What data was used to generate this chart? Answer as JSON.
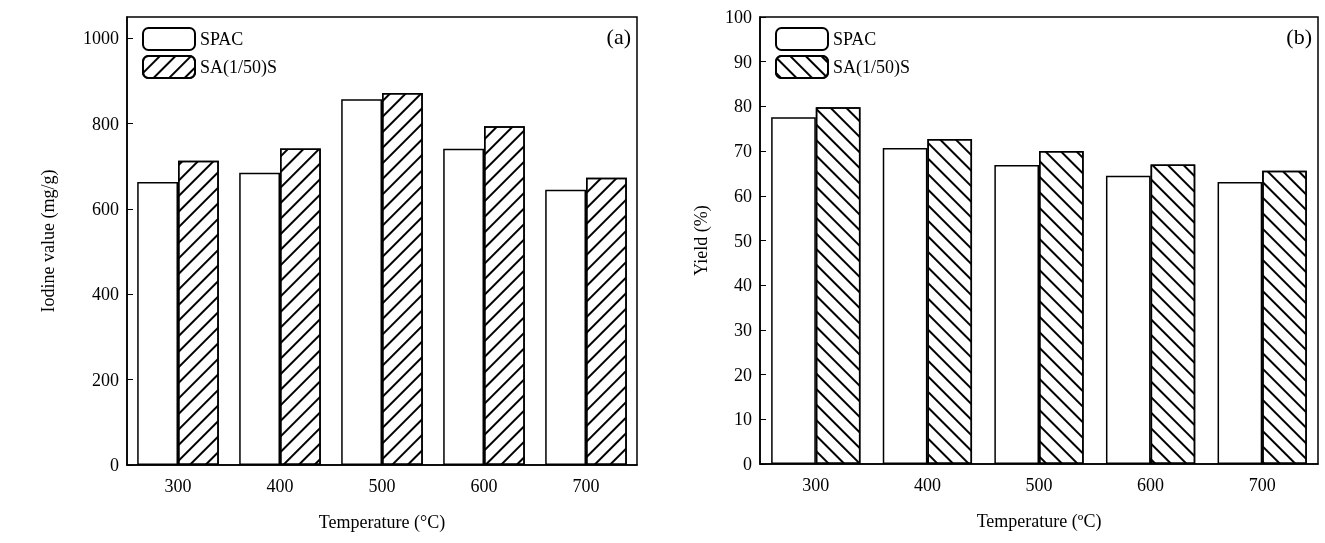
{
  "chart_data": [
    {
      "type": "bar",
      "xlabel": "Temperature (°C)",
      "ylabel": "Iodine value (mg/g)",
      "categories": [
        "300",
        "400",
        "500",
        "600",
        "700"
      ],
      "series": [
        {
          "name": "SPAC",
          "color": "#ffffff",
          "values": [
            663,
            685,
            857,
            741,
            645
          ]
        },
        {
          "name": "SA(1/50)S",
          "color": "#ffffff",
          "values": [
            713,
            742,
            872,
            794,
            673
          ]
        }
      ],
      "ylim": [
        0,
        1050
      ],
      "yticks": [
        0,
        200,
        400,
        600,
        800,
        1000
      ],
      "legend": "top left",
      "annotations": [
        "(a)"
      ]
    },
    {
      "type": "bar",
      "xlabel": "Temperature (ºC)",
      "ylabel": "Yield (%)",
      "categories": [
        "300",
        "400",
        "500",
        "600",
        "700"
      ],
      "series": [
        {
          "name": "SPAC",
          "color": "#ffffff",
          "values": [
            77.6,
            70.7,
            66.9,
            64.5,
            63.1
          ]
        },
        {
          "name": "SA(1/50)S",
          "color": "#ffffff",
          "values": [
            79.8,
            72.7,
            70.0,
            67.0,
            65.6
          ]
        }
      ],
      "ylim": [
        0,
        100
      ],
      "yticks": [
        0,
        10,
        20,
        30,
        40,
        50,
        60,
        70,
        80,
        90,
        100
      ],
      "legend": "top left",
      "annotations": [
        "(b)"
      ]
    }
  ]
}
